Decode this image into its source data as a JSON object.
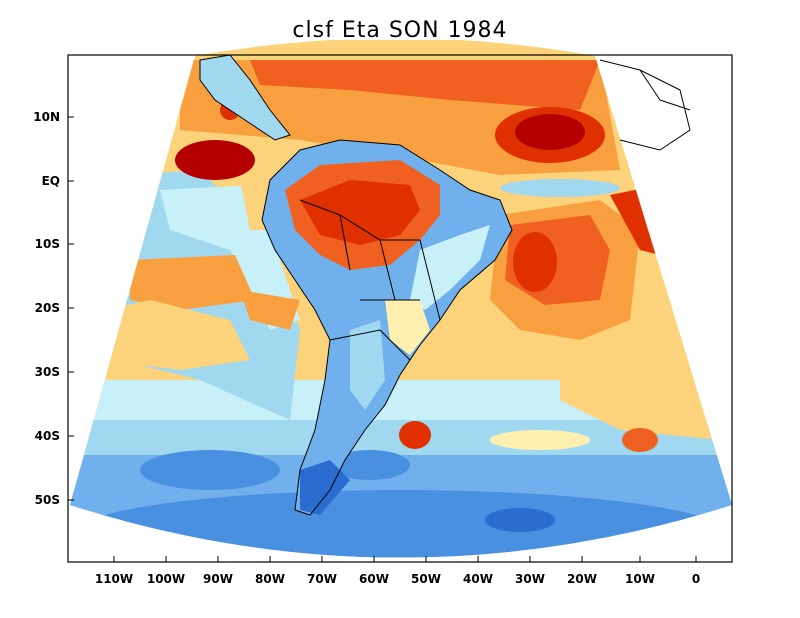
{
  "title": "clsf Eta SON 1984",
  "axes": {
    "x_ticks": [
      "110W",
      "100W",
      "90W",
      "80W",
      "70W",
      "60W",
      "50W",
      "40W",
      "30W",
      "20W",
      "10W",
      "0"
    ],
    "y_ticks": [
      "10N",
      "EQ",
      "10S",
      "20S",
      "30S",
      "40S",
      "50S"
    ]
  },
  "colors": {
    "dark_red": "#b40000",
    "red": "#e03000",
    "orange": "#f06020",
    "light_orange": "#f8a040",
    "yellow": "#fcd27a",
    "pale_yellow": "#fff0b0",
    "pale_blue": "#c8f0f8",
    "light_blue": "#a0d8f0",
    "mid_blue": "#70b0ec",
    "blue": "#4a90e0",
    "dark_blue": "#2a6cd0"
  }
}
